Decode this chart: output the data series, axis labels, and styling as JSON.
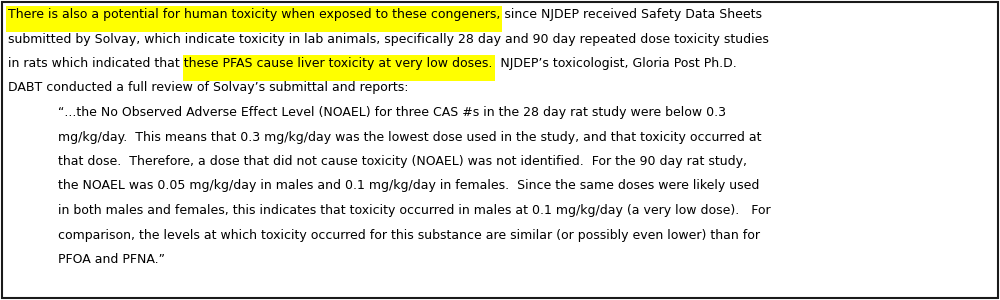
{
  "background_color": "#ffffff",
  "border_color": "#1a1a1a",
  "highlight_color": "#ffff00",
  "text_color": "#000000",
  "font_size": 9.0,
  "line1_highlight": "There is also a potential for human toxicity when exposed to these congeners,",
  "line1_after": " since NJDEP received Safety Data Sheets",
  "line2": "submitted by Solvay, which indicate toxicity in lab animals, specifically 28 day and 90 day repeated dose toxicity studies",
  "line3_before": "in rats which indicated that ",
  "line3_highlight": "these PFAS cause liver toxicity at very low doses.",
  "line3_after": "  NJDEP’s toxicologist, Gloria Post Ph.D.",
  "line4": "DABT conducted a full review of Solvay’s submittal and reports:",
  "quote_line1": "“...the No Observed Adverse Effect Level (NOAEL) for three CAS #s in the 28 day rat study were below 0.3",
  "quote_line2": "mg/kg/day.  This means that 0.3 mg/kg/day was the lowest dose used in the study, and that toxicity occurred at",
  "quote_line3": "that dose.  Therefore, a dose that did not cause toxicity (NOAEL) was not identified.  For the 90 day rat study,",
  "quote_line4": "the NOAEL was 0.05 mg/kg/day in males and 0.1 mg/kg/day in females.  Since the same doses were likely used",
  "quote_line5": "in both males and females, this indicates that toxicity occurred in males at 0.1 mg/kg/day (a very low dose).   For",
  "quote_line6": "comparison, the levels at which toxicity occurred for this substance are similar (or possibly even lower) than for",
  "quote_line7": "PFOA and PFNA.”"
}
